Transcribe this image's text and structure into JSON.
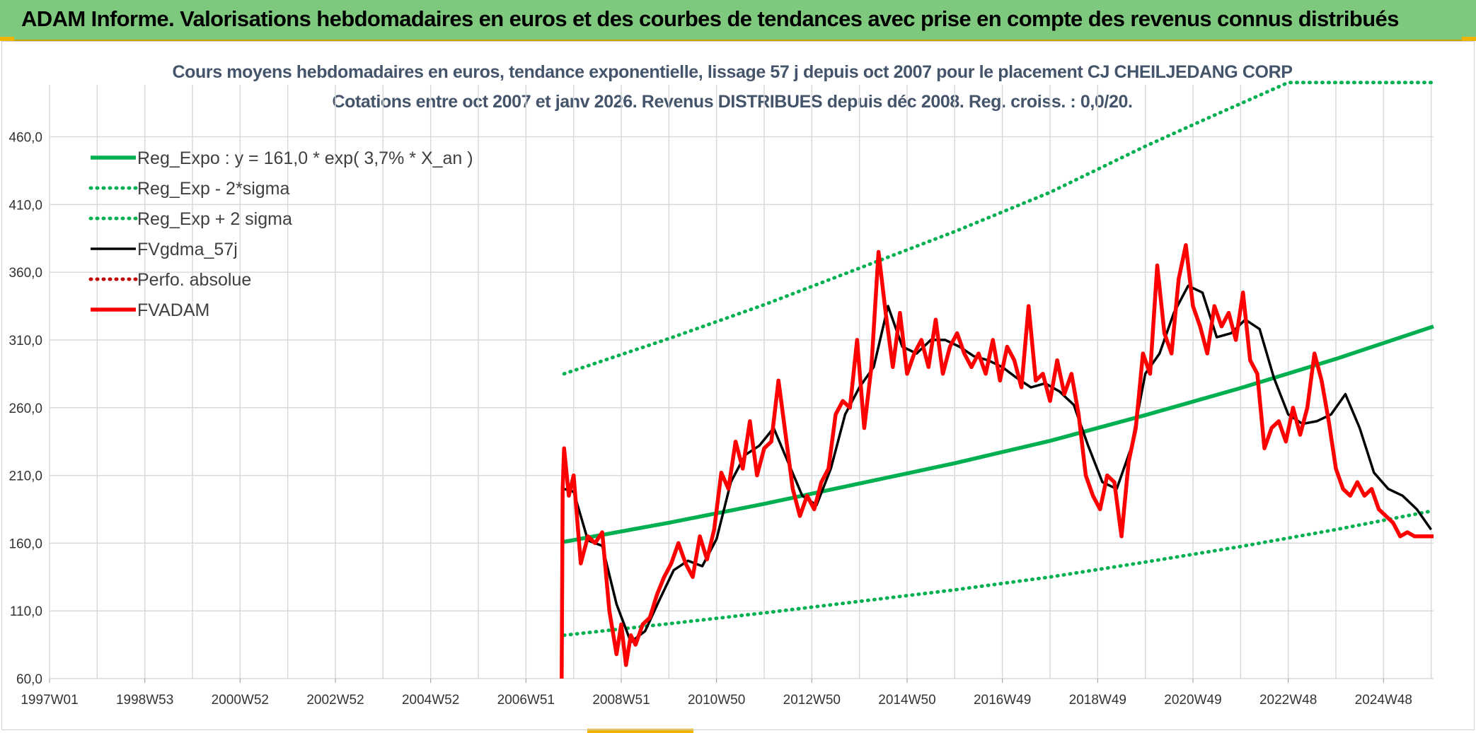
{
  "header": {
    "title": "ADAM Informe. Valorisations hebdomadaires en euros et des courbes de tendances avec prise en compte des revenus connus distribués"
  },
  "colors": {
    "banner": "#7fc97f",
    "trend": "#00b050",
    "smooth": "#000000",
    "price": "#ff0000",
    "perf": "#c00000"
  },
  "chart_data": {
    "type": "line",
    "title": "Cours moyens hebdomadaires en euros, tendance exponentielle, lissage 57 j depuis oct 2007 pour le placement CJ CHEILJEDANG CORP",
    "subtitle": "Cotations entre oct 2007 et janv 2026. Revenus DISTRIBUES depuis déc 2008. Reg. croiss. : 0,0/20.",
    "xlabel": "",
    "ylabel": "",
    "x_ticks": [
      "1997W01",
      "1998W53",
      "2000W52",
      "2002W52",
      "2004W52",
      "2006W51",
      "2008W51",
      "2010W50",
      "2012W50",
      "2014W50",
      "2016W49",
      "2018W49",
      "2020W49",
      "2022W48",
      "2024W48"
    ],
    "x_range": [
      1997.0,
      2026.05
    ],
    "y_ticks": [
      "60,0",
      "110,0",
      "160,0",
      "210,0",
      "260,0",
      "310,0",
      "360,0",
      "410,0",
      "460,0"
    ],
    "ylim": [
      60,
      500
    ],
    "grid": true,
    "legend_position": "top-left",
    "series": [
      {
        "name": "Reg_Expo : y = 161,0 * exp( 3,7% *  X_an )",
        "style": "solid-thick",
        "color": "#00b050",
        "x": [
          2007.8,
          2010,
          2012,
          2014,
          2016,
          2018,
          2020,
          2022,
          2024,
          2026.05
        ],
        "values": [
          161.0,
          175.0,
          189.0,
          204.0,
          219.0,
          235.5,
          254.5,
          274.5,
          296.0,
          320.0
        ]
      },
      {
        "name": "Reg_Exp - 2*sigma",
        "style": "dotted",
        "color": "#00b050",
        "x": [
          2007.8,
          2010,
          2012,
          2014,
          2016,
          2018,
          2020,
          2022,
          2024,
          2026.05
        ],
        "values": [
          92.0,
          100.5,
          108.5,
          117.0,
          125.5,
          135.0,
          146.0,
          157.5,
          170.0,
          184.0
        ]
      },
      {
        "name": "Reg_Exp + 2 sigma",
        "style": "dotted",
        "color": "#00b050",
        "x": [
          2007.8,
          2010,
          2012,
          2014,
          2016,
          2018,
          2020,
          2021.2,
          2023.0,
          2026.05
        ],
        "values": [
          285.0,
          311.0,
          336.0,
          363.0,
          390.0,
          419.0,
          453.0,
          472.0,
          500.0,
          500.0
        ]
      },
      {
        "name": "FVgdma_57j",
        "style": "solid",
        "color": "#000000",
        "x": [
          2007.8,
          2008.0,
          2008.3,
          2008.6,
          2008.9,
          2009.2,
          2009.5,
          2009.8,
          2010.1,
          2010.4,
          2010.7,
          2011.0,
          2011.3,
          2011.6,
          2011.9,
          2012.2,
          2012.5,
          2012.8,
          2013.1,
          2013.4,
          2013.7,
          2014.0,
          2014.3,
          2014.6,
          2014.9,
          2015.2,
          2015.5,
          2015.8,
          2016.1,
          2016.4,
          2016.7,
          2017.0,
          2017.3,
          2017.6,
          2017.9,
          2018.2,
          2018.5,
          2018.8,
          2019.1,
          2019.4,
          2019.7,
          2020.0,
          2020.3,
          2020.6,
          2020.9,
          2021.2,
          2021.5,
          2021.8,
          2022.1,
          2022.4,
          2022.7,
          2023.0,
          2023.3,
          2023.6,
          2023.9,
          2024.2,
          2024.5,
          2024.8,
          2025.1,
          2025.4,
          2025.7,
          2026.0
        ],
        "values": [
          200,
          198,
          162,
          158,
          115,
          87,
          95,
          118,
          140,
          147,
          143,
          163,
          205,
          225,
          232,
          245,
          220,
          195,
          188,
          215,
          255,
          275,
          290,
          335,
          305,
          300,
          310,
          310,
          305,
          298,
          295,
          290,
          282,
          275,
          278,
          272,
          262,
          232,
          205,
          200,
          230,
          285,
          300,
          330,
          350,
          345,
          312,
          315,
          325,
          318,
          282,
          255,
          248,
          250,
          255,
          270,
          245,
          212,
          200,
          195,
          185,
          170
        ]
      },
      {
        "name": "Perfo. absolue",
        "style": "dotted",
        "color": "#c00000",
        "x": [
          2026.0
        ],
        "values": [
          170
        ]
      },
      {
        "name": "FVADAM",
        "style": "solid-thick",
        "color": "#ff0000",
        "x": [
          2007.75,
          2007.77,
          2007.8,
          2007.9,
          2008.0,
          2008.15,
          2008.3,
          2008.45,
          2008.6,
          2008.75,
          2008.9,
          2009.0,
          2009.1,
          2009.2,
          2009.3,
          2009.45,
          2009.6,
          2009.75,
          2009.9,
          2010.05,
          2010.2,
          2010.35,
          2010.5,
          2010.65,
          2010.8,
          2010.95,
          2011.1,
          2011.25,
          2011.4,
          2011.55,
          2011.7,
          2011.85,
          2012.0,
          2012.15,
          2012.3,
          2012.45,
          2012.6,
          2012.75,
          2012.9,
          2013.05,
          2013.2,
          2013.35,
          2013.5,
          2013.65,
          2013.8,
          2013.95,
          2014.1,
          2014.25,
          2014.4,
          2014.55,
          2014.7,
          2014.85,
          2015.0,
          2015.15,
          2015.3,
          2015.45,
          2015.6,
          2015.75,
          2015.9,
          2016.05,
          2016.2,
          2016.35,
          2016.5,
          2016.65,
          2016.8,
          2016.95,
          2017.1,
          2017.25,
          2017.4,
          2017.55,
          2017.7,
          2017.85,
          2018.0,
          2018.15,
          2018.3,
          2018.45,
          2018.6,
          2018.75,
          2018.9,
          2019.05,
          2019.2,
          2019.35,
          2019.5,
          2019.65,
          2019.8,
          2019.95,
          2020.1,
          2020.25,
          2020.4,
          2020.55,
          2020.7,
          2020.85,
          2021.0,
          2021.15,
          2021.3,
          2021.45,
          2021.6,
          2021.75,
          2021.9,
          2022.05,
          2022.2,
          2022.35,
          2022.5,
          2022.65,
          2022.8,
          2022.95,
          2023.1,
          2023.25,
          2023.4,
          2023.55,
          2023.7,
          2023.85,
          2024.0,
          2024.15,
          2024.3,
          2024.45,
          2024.6,
          2024.75,
          2024.9,
          2025.05,
          2025.2,
          2025.35,
          2025.5,
          2025.65,
          2025.8,
          2025.95,
          2026.05
        ],
        "values": [
          60,
          200,
          230,
          195,
          210,
          145,
          165,
          160,
          168,
          110,
          78,
          100,
          70,
          92,
          85,
          100,
          105,
          122,
          135,
          145,
          160,
          145,
          135,
          165,
          148,
          170,
          212,
          200,
          235,
          215,
          250,
          210,
          230,
          235,
          280,
          240,
          200,
          180,
          195,
          185,
          205,
          215,
          255,
          265,
          260,
          310,
          245,
          290,
          375,
          330,
          290,
          330,
          285,
          300,
          310,
          290,
          325,
          285,
          305,
          315,
          300,
          290,
          300,
          285,
          310,
          280,
          305,
          295,
          275,
          335,
          280,
          285,
          265,
          295,
          270,
          285,
          255,
          210,
          195,
          185,
          210,
          205,
          165,
          220,
          245,
          300,
          285,
          365,
          315,
          300,
          355,
          380,
          335,
          320,
          300,
          335,
          320,
          330,
          310,
          345,
          295,
          285,
          230,
          245,
          250,
          235,
          260,
          240,
          260,
          300,
          280,
          250,
          215,
          200,
          195,
          205,
          195,
          200,
          185,
          180,
          175,
          165,
          168,
          165,
          165,
          165,
          165
        ]
      }
    ]
  }
}
